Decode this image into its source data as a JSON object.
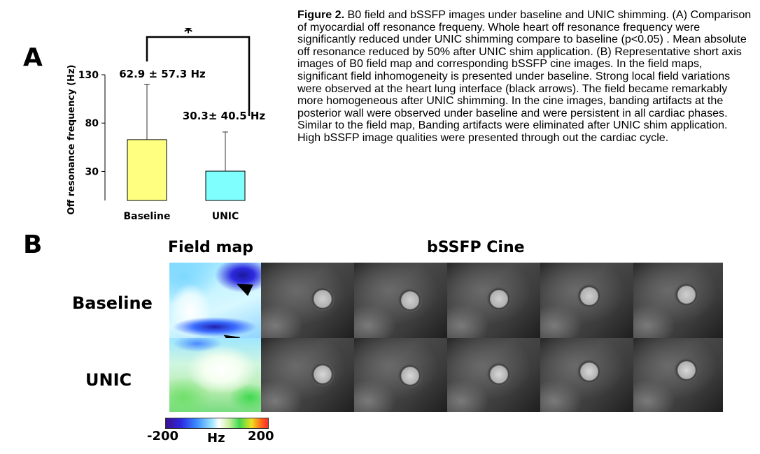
{
  "panel_labels": {
    "a": "A",
    "b": "B"
  },
  "chart_data": {
    "type": "bar",
    "categories": [
      "Baseline",
      "UNIC"
    ],
    "values": [
      62.9,
      30.3
    ],
    "errors": [
      57.3,
      40.5
    ],
    "colors": [
      "#ffff80",
      "#80ffff"
    ],
    "bar_labels": [
      "62.9 ± 57.3 Hz",
      "30.3± 40.5 Hz"
    ],
    "ylabel": "Off resonance frequency (Hz)",
    "yticks": [
      30,
      80,
      130
    ],
    "ylim": [
      0,
      130
    ],
    "significance": "*",
    "grid": false
  },
  "caption": {
    "label": "Figure 2.",
    "text": " B0 field and bSSFP images under baseline and UNIC shimming. (A) Comparison of myocardial off resonance frequeny. Whole heart off resonance frequency were significantly reduced under UNIC shimming compare to baseline (p<0.05) .  Mean absolute off resonance reduced by 50% after UNIC shim application. (B) Representative short axis images of B0 field map and corresponding bSSFP cine images. In the field maps, significant field inhomogeneity is presented under baseline. Strong local field variations were observed at the heart lung interface (black arrows). The field became remarkably more homogeneous after UNIC shimming. In the cine images, banding artifacts at the posterior wall were observed under baseline and were persistent in all cardiac phases. Similar to the field map, Banding artifacts were eliminated after UNIC shim application. High bSSFP image qualities were presented through out the cardiac cycle."
  },
  "part_b": {
    "field_map_title": "Field map",
    "cine_title": "bSSFP Cine",
    "row_labels": [
      "Baseline",
      "UNIC"
    ],
    "colorbar": {
      "min": "-200",
      "unit": "Hz",
      "max": "200"
    }
  }
}
